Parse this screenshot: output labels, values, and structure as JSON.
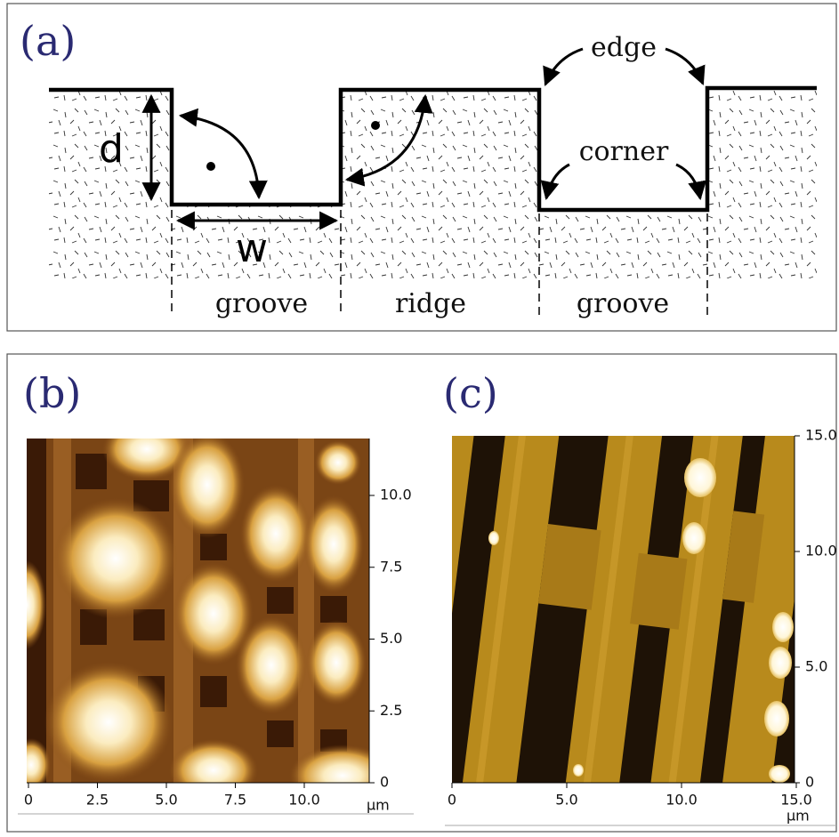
{
  "panel_a": {
    "label": "(a)",
    "depth": "d",
    "width": "w",
    "edge": "edge",
    "corner": "corner",
    "regions": [
      "groove",
      "ridge",
      "groove"
    ]
  },
  "panel_b": {
    "label": "(b)",
    "yticks": [
      "10.0",
      "7.5",
      "5.0",
      "2.5",
      "0"
    ],
    "xticks": [
      "0",
      "2.5",
      "5.0",
      "7.5",
      "10.0"
    ],
    "unit": "µm"
  },
  "panel_c": {
    "label": "(c)",
    "yticks": [
      "15.0",
      "10.0",
      "5.0",
      "0"
    ],
    "xticks": [
      "0",
      "5.0",
      "10.0",
      "15.0"
    ],
    "unit": "µm"
  }
}
